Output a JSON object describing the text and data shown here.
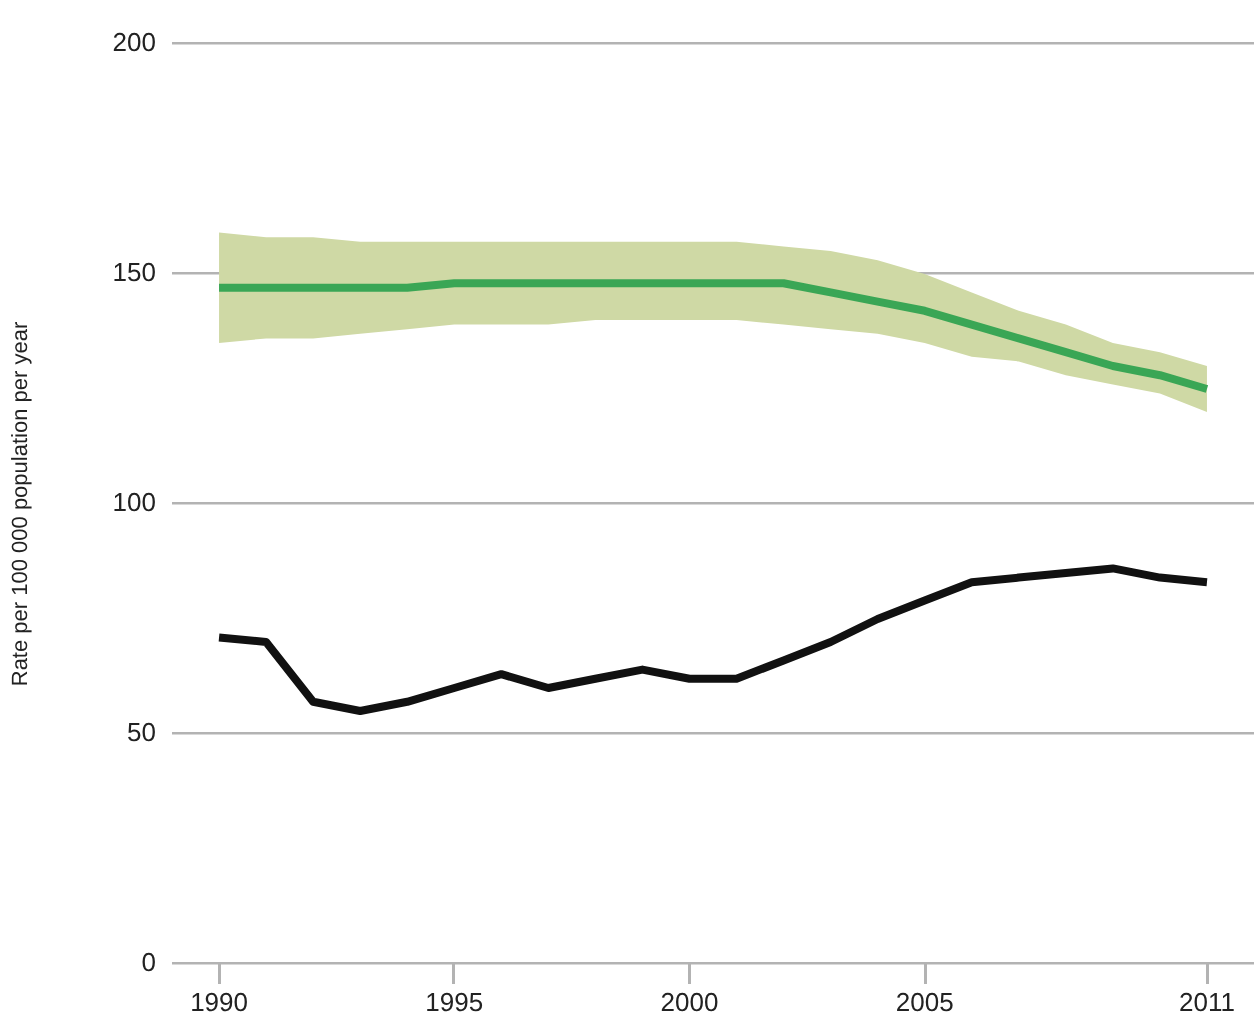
{
  "chart_data": {
    "type": "line",
    "ylabel": "Rate per 100 000 population per year",
    "x": [
      1990,
      1991,
      1992,
      1993,
      1994,
      1995,
      1996,
      1997,
      1998,
      1999,
      2000,
      2001,
      2002,
      2003,
      2004,
      2005,
      2006,
      2007,
      2008,
      2009,
      2010,
      2011
    ],
    "series": [
      {
        "color": "#3aa655",
        "values": [
          147,
          147,
          147,
          147,
          147,
          148,
          148,
          148,
          148,
          148,
          148,
          148,
          148,
          146,
          144,
          142,
          139,
          136,
          133,
          130,
          128,
          125
        ],
        "lower": [
          135,
          136,
          136,
          137,
          138,
          139,
          139,
          139,
          140,
          140,
          140,
          140,
          139,
          138,
          137,
          135,
          132,
          131,
          128,
          126,
          124,
          120
        ],
        "upper": [
          159,
          158,
          158,
          157,
          157,
          157,
          157,
          157,
          157,
          157,
          157,
          157,
          156,
          155,
          153,
          150,
          146,
          142,
          139,
          135,
          133,
          130
        ]
      },
      {
        "color": "#111111",
        "values": [
          71,
          70,
          57,
          55,
          57,
          60,
          63,
          60,
          62,
          64,
          62,
          62,
          66,
          70,
          75,
          79,
          83,
          84,
          85,
          86,
          84,
          83
        ]
      }
    ],
    "xlim": [
      1989,
      2012
    ],
    "xticks": [
      1990,
      1995,
      2000,
      2005,
      2011
    ],
    "ylim": [
      0,
      200
    ],
    "yticks": [
      0,
      50,
      100,
      150,
      200
    ],
    "grid": "y"
  }
}
